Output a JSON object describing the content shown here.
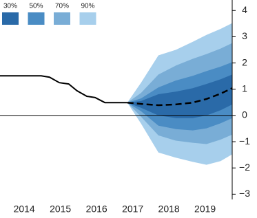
{
  "chart_data": {
    "type": "fan",
    "xlim": [
      2013.83,
      2020.25
    ],
    "xticks": [
      {
        "value": 2014.5,
        "label": "2014"
      },
      {
        "value": 2015.5,
        "label": "2015"
      },
      {
        "value": 2016.5,
        "label": "2016"
      },
      {
        "value": 2017.5,
        "label": "2017"
      },
      {
        "value": 2018.5,
        "label": "2018"
      },
      {
        "value": 2019.5,
        "label": "2019"
      }
    ],
    "ylim": [
      -3.2,
      4.4
    ],
    "yticks": [
      {
        "value": 4,
        "label": "4"
      },
      {
        "value": 3,
        "label": "3"
      },
      {
        "value": 2,
        "label": "2"
      },
      {
        "value": 1,
        "label": "1"
      },
      {
        "value": 0,
        "label": "0"
      },
      {
        "value": -1,
        "label": "−1"
      },
      {
        "value": -2,
        "label": "−2"
      },
      {
        "value": -3,
        "label": "−3"
      }
    ],
    "zero_line": true,
    "x_history": [
      2013.83,
      2014.97,
      2015.2,
      2015.47,
      2015.73,
      2015.96,
      2016.23,
      2016.46,
      2016.73,
      2017.35
    ],
    "history": [
      1.51,
      1.51,
      1.46,
      1.25,
      1.2,
      0.94,
      0.73,
      0.68,
      0.49,
      0.49
    ],
    "history_color": "#000000",
    "x_projection": [
      2017.35,
      2017.73,
      2018.21,
      2018.69,
      2019.16,
      2019.54,
      2019.93,
      2020.25
    ],
    "projection": [
      0.49,
      0.44,
      0.39,
      0.42,
      0.49,
      0.63,
      0.83,
      1.04
    ],
    "bands": [
      {
        "name": "90%",
        "color": "#a7cfec",
        "upper": [
          0.49,
          1.25,
          2.29,
          2.5,
          2.81,
          3.07,
          3.3,
          3.52
        ],
        "lower": [
          0.49,
          -0.31,
          -1.41,
          -1.61,
          -1.77,
          -1.88,
          -1.74,
          -1.48
        ]
      },
      {
        "name": "70%",
        "color": "#79add6",
        "upper": [
          0.49,
          0.86,
          1.56,
          1.9,
          2.16,
          2.34,
          2.55,
          2.76
        ],
        "lower": [
          0.49,
          -0.05,
          -0.76,
          -0.96,
          -1.04,
          -1.09,
          -0.92,
          -0.73
        ]
      },
      {
        "name": "50%",
        "color": "#4a8cc4",
        "upper": [
          0.49,
          0.65,
          1.07,
          1.33,
          1.51,
          1.69,
          1.86,
          2.03
        ],
        "lower": [
          0.49,
          0.16,
          -0.39,
          -0.52,
          -0.57,
          -0.49,
          -0.3,
          -0.1
        ]
      },
      {
        "name": "30%",
        "color": "#2a6aa8",
        "upper": [
          0.49,
          0.55,
          0.81,
          0.91,
          1.04,
          1.2,
          1.38,
          1.56
        ],
        "lower": [
          0.49,
          0.29,
          0.0,
          -0.1,
          -0.1,
          0.0,
          0.2,
          0.42
        ]
      }
    ]
  }
}
